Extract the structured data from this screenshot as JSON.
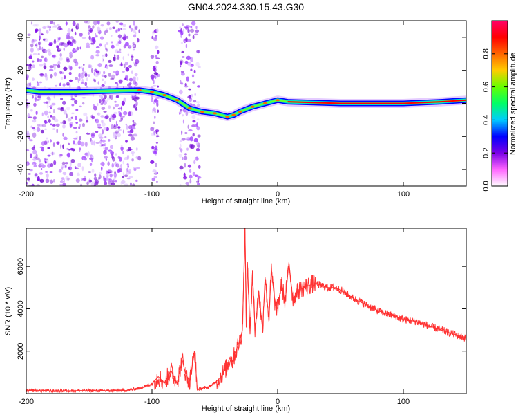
{
  "title": "GN04.2024.330.15.43.G30",
  "chart_data": [
    {
      "type": "heatmap",
      "xlabel": "Height of straight line (km)",
      "ylabel": "Frequency (Hz)",
      "xlim": [
        -200,
        150
      ],
      "ylim": [
        -50,
        50
      ],
      "xticks": [
        -200,
        -100,
        0,
        100
      ],
      "yticks": [
        -40,
        -20,
        0,
        20,
        40
      ],
      "colorbar": {
        "label": "Normalized spectral amplitude",
        "ticks": [
          "0.0",
          "0.2",
          "0.4",
          "0.6",
          "0.8"
        ],
        "range": [
          0,
          1
        ],
        "colors": [
          "#ffffff",
          "#ff66ff",
          "#7a00e6",
          "#0000ff",
          "#00ccff",
          "#00ff66",
          "#66ff00",
          "#ffcc00",
          "#ff6600",
          "#ff0000",
          "#ff0066"
        ]
      },
      "ridge": [
        {
          "x": -200,
          "y": 8
        },
        {
          "x": -190,
          "y": 7
        },
        {
          "x": -180,
          "y": 7
        },
        {
          "x": -170,
          "y": 7
        },
        {
          "x": -160,
          "y": 7
        },
        {
          "x": -110,
          "y": 8
        },
        {
          "x": -100,
          "y": 7
        },
        {
          "x": -90,
          "y": 5
        },
        {
          "x": -80,
          "y": 2
        },
        {
          "x": -70,
          "y": -3
        },
        {
          "x": -60,
          "y": -5
        },
        {
          "x": -50,
          "y": -6
        },
        {
          "x": -40,
          "y": -8
        },
        {
          "x": -35,
          "y": -7
        },
        {
          "x": -30,
          "y": -5
        },
        {
          "x": -20,
          "y": -2
        },
        {
          "x": -10,
          "y": 0
        },
        {
          "x": 0,
          "y": 2
        },
        {
          "x": 8,
          "y": 1
        },
        {
          "x": 50,
          "y": 0
        },
        {
          "x": 100,
          "y": 0
        },
        {
          "x": 130,
          "y": 1
        },
        {
          "x": 150,
          "y": 2
        }
      ],
      "scatter_clusters": [
        {
          "x_range": [
            -200,
            -110
          ],
          "density": "high"
        },
        {
          "x_range": [
            -100,
            -95
          ],
          "density": "medium"
        },
        {
          "x_range": [
            -78,
            -62
          ],
          "density": "high"
        }
      ]
    },
    {
      "type": "line",
      "xlabel": "Height of straight line (km)",
      "ylabel": "SNR (10 * v/v)",
      "xlim": [
        -200,
        150
      ],
      "ylim": [
        0,
        7800
      ],
      "xticks": [
        -200,
        -100,
        0,
        100
      ],
      "yticks": [
        2000,
        4000,
        6000
      ],
      "color": "#ff3333",
      "series": [
        {
          "x": [
            -200,
            -180,
            -160,
            -140,
            -120,
            -110,
            -100,
            -95,
            -90,
            -85,
            -80,
            -76,
            -73,
            -70,
            -66,
            -64,
            -60,
            -55,
            -50,
            -45,
            -40,
            -38,
            -36,
            -34,
            -32,
            -30,
            -28,
            -26,
            -25,
            -24,
            -22,
            -20,
            -18,
            -15,
            -12,
            -10,
            -7,
            -5,
            -2,
            0,
            3,
            6,
            9,
            12,
            14,
            16,
            20,
            25,
            30,
            35,
            40,
            45,
            50,
            55,
            60,
            70,
            80,
            90,
            100,
            110,
            120,
            130,
            140,
            150
          ],
          "y": [
            150,
            120,
            140,
            130,
            150,
            250,
            450,
            800,
            500,
            1100,
            500,
            1600,
            900,
            600,
            2000,
            200,
            250,
            300,
            500,
            800,
            1300,
            1700,
            1500,
            1900,
            2200,
            2500,
            3000,
            7800,
            3500,
            6200,
            2800,
            5800,
            3000,
            4800,
            3000,
            5500,
            3500,
            5800,
            4200,
            4000,
            5200,
            4300,
            6200,
            4500,
            4600,
            4800,
            5000,
            5100,
            5200,
            5100,
            5000,
            5000,
            4900,
            4700,
            4500,
            4200,
            3900,
            3700,
            3500,
            3400,
            3200,
            3000,
            2800,
            2600
          ]
        }
      ]
    }
  ]
}
